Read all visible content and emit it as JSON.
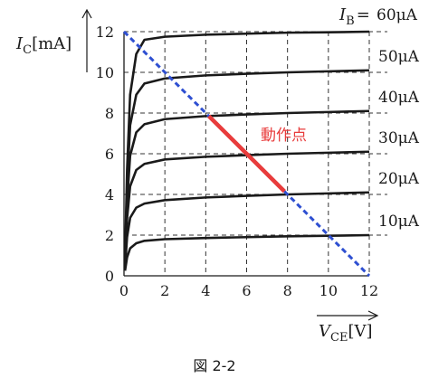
{
  "chart_data": {
    "type": "line",
    "title": "",
    "figure_caption": "図 2-2",
    "ylabel": {
      "symbol": "I",
      "subscript": "C",
      "unit": "[mA]"
    },
    "xlabel": {
      "symbol": "V",
      "subscript": "CE",
      "unit": "[V]"
    },
    "xlim": [
      0,
      12
    ],
    "ylim": [
      0,
      12
    ],
    "x_ticks": [
      0,
      2,
      4,
      6,
      8,
      10,
      12
    ],
    "y_ticks": [
      0,
      2,
      4,
      6,
      8,
      10,
      12
    ],
    "grid": "dashed",
    "ib_symbol": {
      "symbol": "I",
      "subscript": "B",
      "eq": "="
    },
    "series": [
      {
        "name": "10μA",
        "points": [
          [
            0.05,
            0.25
          ],
          [
            0.15,
            0.9
          ],
          [
            0.3,
            1.35
          ],
          [
            0.6,
            1.6
          ],
          [
            1,
            1.72
          ],
          [
            2,
            1.8
          ],
          [
            4,
            1.86
          ],
          [
            6,
            1.9
          ],
          [
            8,
            1.94
          ],
          [
            10,
            1.97
          ],
          [
            12,
            2.0
          ]
        ]
      },
      {
        "name": "20μA",
        "points": [
          [
            0.05,
            0.4
          ],
          [
            0.15,
            1.9
          ],
          [
            0.3,
            2.85
          ],
          [
            0.6,
            3.35
          ],
          [
            1,
            3.55
          ],
          [
            2,
            3.72
          ],
          [
            4,
            3.85
          ],
          [
            6,
            3.93
          ],
          [
            8,
            4.0
          ],
          [
            10,
            4.05
          ],
          [
            12,
            4.1
          ]
        ]
      },
      {
        "name": "30μA",
        "points": [
          [
            0.05,
            0.5
          ],
          [
            0.15,
            2.8
          ],
          [
            0.3,
            4.4
          ],
          [
            0.6,
            5.2
          ],
          [
            1,
            5.5
          ],
          [
            2,
            5.72
          ],
          [
            4,
            5.85
          ],
          [
            6,
            5.93
          ],
          [
            8,
            6.0
          ],
          [
            10,
            6.05
          ],
          [
            12,
            6.1
          ]
        ]
      },
      {
        "name": "40μA",
        "points": [
          [
            0.05,
            0.6
          ],
          [
            0.15,
            3.6
          ],
          [
            0.3,
            5.9
          ],
          [
            0.6,
            7.05
          ],
          [
            1,
            7.45
          ],
          [
            2,
            7.7
          ],
          [
            4,
            7.85
          ],
          [
            6,
            7.93
          ],
          [
            8,
            8.0
          ],
          [
            10,
            8.05
          ],
          [
            12,
            8.1
          ]
        ]
      },
      {
        "name": "50μA",
        "points": [
          [
            0.05,
            0.7
          ],
          [
            0.15,
            4.4
          ],
          [
            0.3,
            7.4
          ],
          [
            0.6,
            8.9
          ],
          [
            1,
            9.45
          ],
          [
            2,
            9.7
          ],
          [
            4,
            9.85
          ],
          [
            6,
            9.93
          ],
          [
            8,
            10.0
          ],
          [
            10,
            10.05
          ],
          [
            12,
            10.1
          ]
        ]
      },
      {
        "name": "60μA",
        "points": [
          [
            0.05,
            0.8
          ],
          [
            0.15,
            5.2
          ],
          [
            0.3,
            8.9
          ],
          [
            0.6,
            10.9
          ],
          [
            1,
            11.6
          ],
          [
            2,
            11.75
          ],
          [
            4,
            11.85
          ],
          [
            6,
            11.9
          ],
          [
            8,
            11.95
          ],
          [
            10,
            11.97
          ],
          [
            12,
            12.0
          ]
        ]
      }
    ],
    "load_line": {
      "points": [
        [
          0,
          12
        ],
        [
          12,
          0
        ]
      ],
      "color": "#2e4fd1",
      "style": "dashed"
    },
    "operating_range": {
      "points": [
        [
          4.15,
          7.85
        ],
        [
          7.85,
          4.15
        ]
      ],
      "color": "#e83c3c",
      "label": "動作点"
    },
    "colors": {
      "curves": "#1a1a1a",
      "grid": "#333333",
      "axis": "#1a1a1a"
    }
  }
}
